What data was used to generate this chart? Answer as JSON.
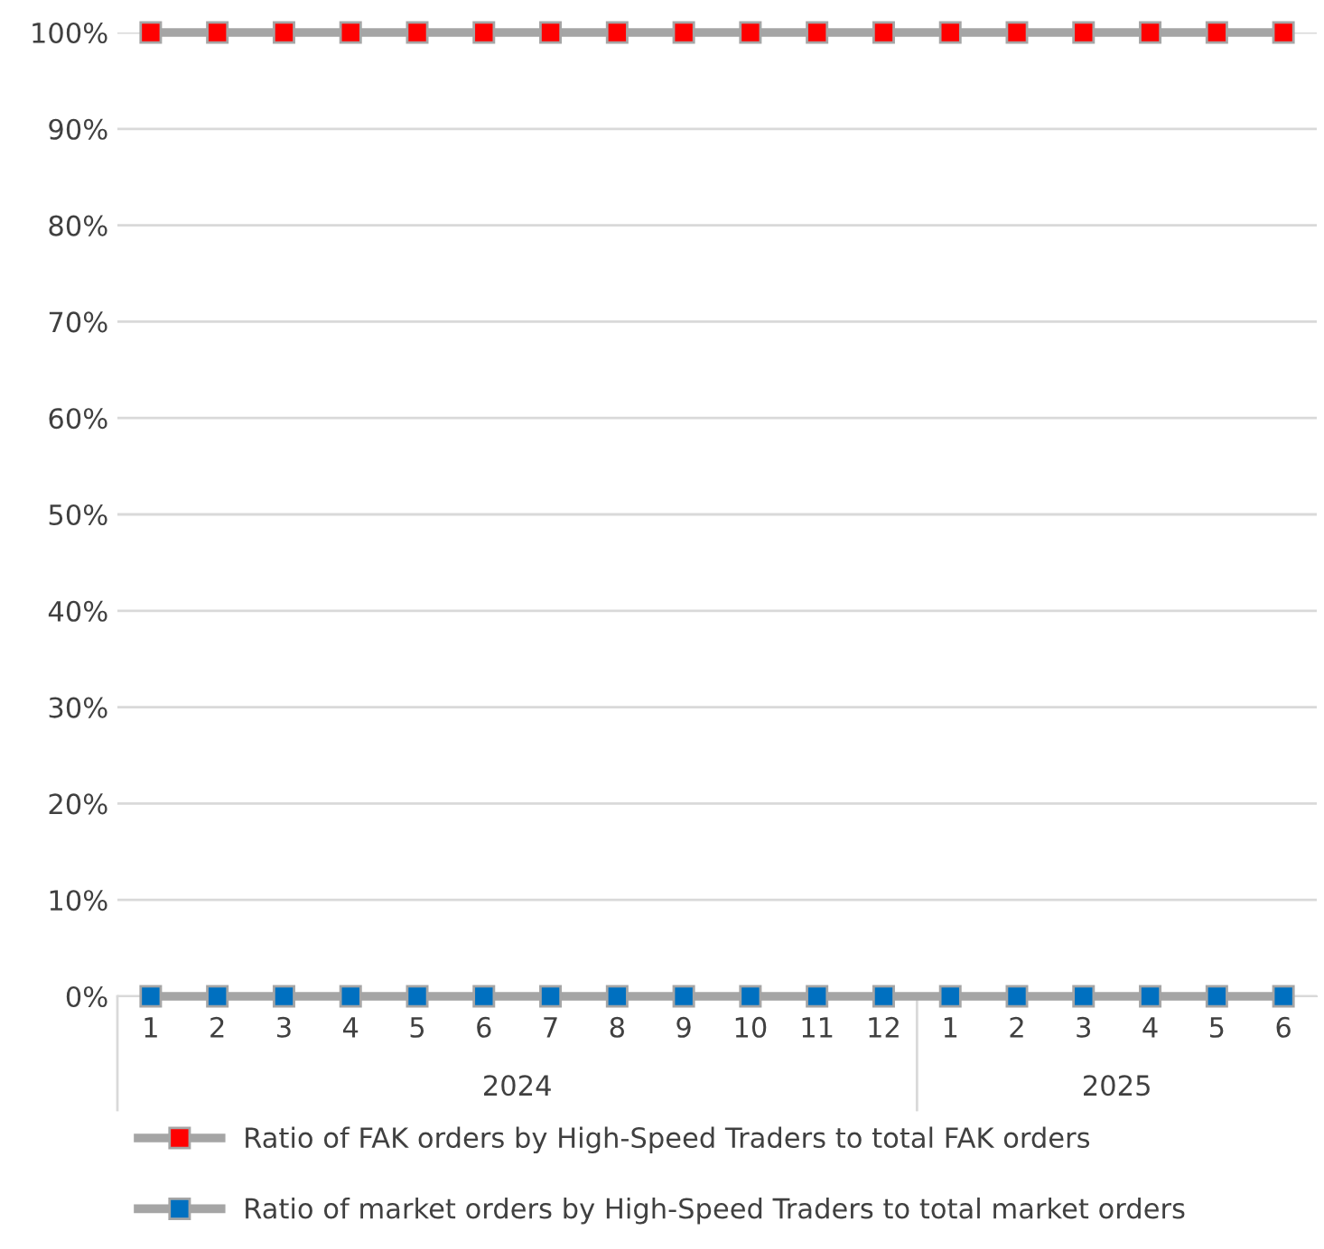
{
  "chart_data": {
    "type": "line",
    "categories": [
      "1",
      "2",
      "3",
      "4",
      "5",
      "6",
      "7",
      "8",
      "9",
      "10",
      "11",
      "12",
      "1",
      "2",
      "3",
      "4",
      "5",
      "6"
    ],
    "series": [
      {
        "name": "Ratio of FAK orders by High-Speed Traders to total FAK orders",
        "color": "#ff0000",
        "values": [
          100,
          100,
          100,
          100,
          100,
          100,
          100,
          100,
          100,
          100,
          100,
          100,
          100,
          100,
          100,
          100,
          100,
          100
        ]
      },
      {
        "name": "Ratio of market orders by High-Speed Traders to total market orders",
        "color": "#0070c0",
        "values": [
          0,
          0,
          0,
          0,
          0,
          0,
          0,
          0,
          0,
          0,
          0,
          0,
          0,
          0,
          0,
          0,
          0,
          0
        ]
      }
    ],
    "annotations": [
      "2024",
      "2025"
    ],
    "ylim": [
      0,
      100
    ],
    "yticks": [
      {
        "value": 0,
        "label": "0%"
      },
      {
        "value": 10,
        "label": "10%"
      },
      {
        "value": 20,
        "label": "20%"
      },
      {
        "value": 30,
        "label": "30%"
      },
      {
        "value": 40,
        "label": "40%"
      },
      {
        "value": 50,
        "label": "50%"
      },
      {
        "value": 60,
        "label": "60%"
      },
      {
        "value": 70,
        "label": "70%"
      },
      {
        "value": 80,
        "label": "80%"
      },
      {
        "value": 90,
        "label": "90%"
      },
      {
        "value": 100,
        "label": "100%"
      }
    ],
    "grid": "y",
    "legend": "bottom",
    "marker": "square",
    "line_style": "solid"
  }
}
